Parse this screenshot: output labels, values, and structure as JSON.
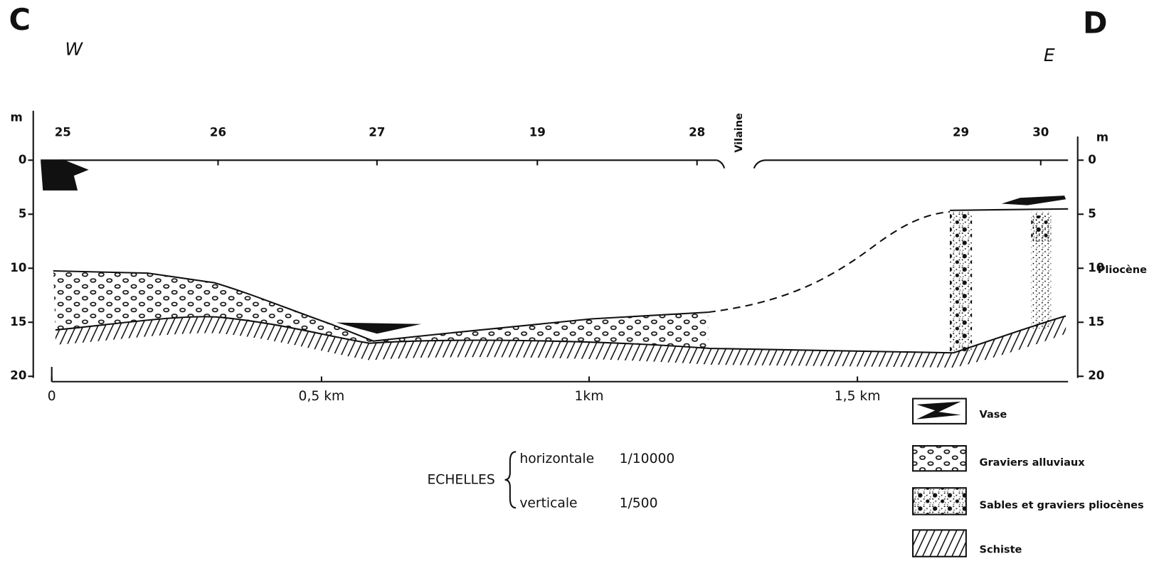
{
  "header": {
    "left_point": "C",
    "right_point": "D",
    "left_direction": "W",
    "right_direction": "E"
  },
  "left_axis": {
    "unit": "m",
    "ticks": [
      "0",
      "5",
      "10",
      "15",
      "20"
    ]
  },
  "right_axis": {
    "unit": "m",
    "ticks": [
      "0",
      "5",
      "10",
      "15",
      "20"
    ],
    "note": "Pliocène"
  },
  "boreholes": [
    "25",
    "26",
    "27",
    "19",
    "28",
    "29",
    "30"
  ],
  "river": "Vilaine",
  "distance_axis": [
    "0",
    "0,5 km",
    "1km",
    "1,5 km"
  ],
  "scales": {
    "label": "ECHELLES",
    "rows": [
      {
        "name": "horizontale",
        "value": "1/10000"
      },
      {
        "name": "verticale",
        "value": "1/500"
      }
    ]
  },
  "legend": [
    "Vase",
    "Graviers alluviaux",
    "Sables et graviers pliocènes",
    "Schiste"
  ]
}
